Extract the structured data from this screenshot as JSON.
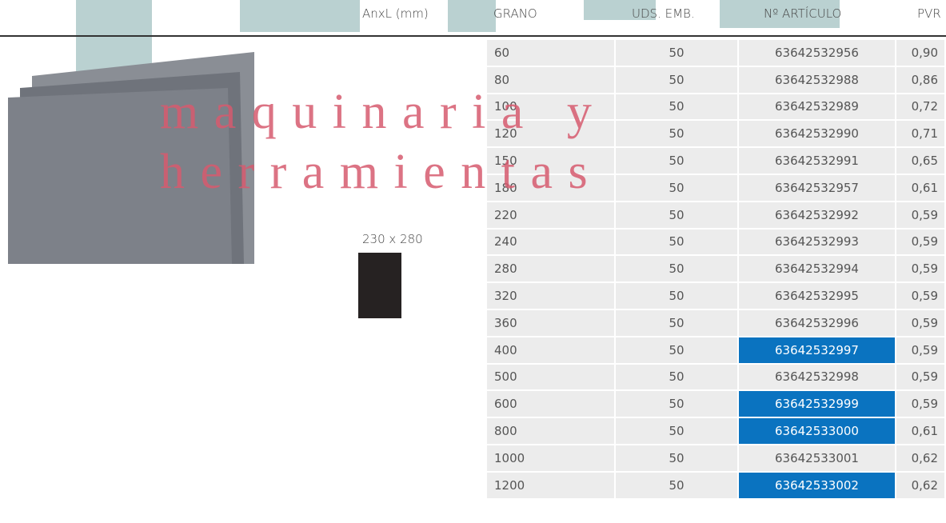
{
  "header": {
    "columns": [
      "AnxL (mm)",
      "GRANO",
      "UDS. EMB.",
      "Nº ARTÍCULO",
      "PVR"
    ]
  },
  "product": {
    "size": "230 x 280"
  },
  "watermark": [
    "m a q u i n a r i a   y",
    "h e r r a m i e n t a s"
  ],
  "table": {
    "rows": [
      [
        "60",
        "50",
        "63642532956",
        "0,90"
      ],
      [
        "80",
        "50",
        "63642532988",
        "0,86"
      ],
      [
        "100",
        "50",
        "63642532989",
        "0,72"
      ],
      [
        "120",
        "50",
        "63642532990",
        "0,71"
      ],
      [
        "150",
        "50",
        "63642532991",
        "0,65"
      ],
      [
        "180",
        "50",
        "63642532957",
        "0,61"
      ],
      [
        "220",
        "50",
        "63642532992",
        "0,59"
      ],
      [
        "240",
        "50",
        "63642532993",
        "0,59"
      ],
      [
        "280",
        "50",
        "63642532994",
        "0,59"
      ],
      [
        "320",
        "50",
        "63642532995",
        "0,59"
      ],
      [
        "360",
        "50",
        "63642532996",
        "0,59"
      ],
      [
        "400",
        "50",
        "63642532997",
        "0,59"
      ],
      [
        "500",
        "50",
        "63642532998",
        "0,59"
      ],
      [
        "600",
        "50",
        "63642532999",
        "0,59"
      ],
      [
        "800",
        "50",
        "63642533000",
        "0,61"
      ],
      [
        "1000",
        "50",
        "63642533001",
        "0,62"
      ],
      [
        "1200",
        "50",
        "63642533002",
        "0,62"
      ]
    ],
    "highlighted_rows": [
      11,
      13,
      14,
      16
    ]
  }
}
